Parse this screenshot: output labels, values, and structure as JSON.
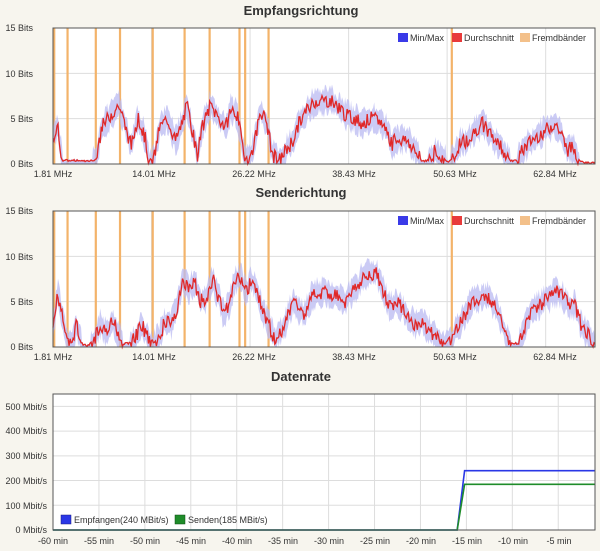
{
  "chart_data": [
    {
      "type": "bar",
      "title": "Empfangsrichtung",
      "yunit": "Bits",
      "ylim": [
        0,
        15
      ],
      "yticks": [
        "0 Bits",
        "5 Bits",
        "10 Bits",
        "15 Bits"
      ],
      "xlim": [
        1.81,
        68.95
      ],
      "xticks": [
        "1.81 MHz",
        "14.01 MHz",
        "26.22 MHz",
        "38.43 MHz",
        "50.63 MHz",
        "62.84 MHz"
      ],
      "legend_position": "top-right",
      "legend": [
        {
          "label": "Min/Max",
          "color": "#3a3ae8"
        },
        {
          "label": "Durchschnitt",
          "color": "#e83a3a"
        },
        {
          "label": "Fremdbänder",
          "color": "#f3c08a"
        }
      ],
      "grid": true,
      "foreign_bands_mhz": [
        1.95,
        3.6,
        7.1,
        10.1,
        14.15,
        18.1,
        21.2,
        24.9,
        25.6,
        28.5,
        51.2
      ],
      "avg_profile": [
        [
          1.81,
          3
        ],
        [
          2.4,
          4
        ],
        [
          3.0,
          0.3
        ],
        [
          6.5,
          0.2
        ],
        [
          7.3,
          0.5
        ],
        [
          7.8,
          4
        ],
        [
          9,
          5.5
        ],
        [
          10,
          6.5
        ],
        [
          10.8,
          4
        ],
        [
          11.5,
          2
        ],
        [
          12.3,
          5
        ],
        [
          13.2,
          3
        ],
        [
          13.7,
          0.3
        ],
        [
          14.3,
          0.5
        ],
        [
          15.0,
          4
        ],
        [
          16,
          5
        ],
        [
          17,
          2.5
        ],
        [
          17.8,
          4.5
        ],
        [
          18.4,
          6.5
        ],
        [
          19.1,
          3.5
        ],
        [
          19.7,
          0.8
        ],
        [
          20.3,
          4
        ],
        [
          21.3,
          6.5
        ],
        [
          22.4,
          5
        ],
        [
          23.2,
          4
        ],
        [
          23.8,
          6
        ],
        [
          24.6,
          5.5
        ],
        [
          25.5,
          1
        ],
        [
          26.2,
          0.5
        ],
        [
          26.9,
          3
        ],
        [
          27.5,
          6
        ],
        [
          28.3,
          4.5
        ],
        [
          29.0,
          1
        ],
        [
          29.8,
          0.3
        ],
        [
          30.6,
          1.5
        ],
        [
          31.5,
          2.5
        ],
        [
          32.3,
          4.5
        ],
        [
          33.3,
          6
        ],
        [
          34.3,
          7
        ],
        [
          36.2,
          7
        ],
        [
          37.2,
          6.3
        ],
        [
          38.2,
          5.3
        ],
        [
          39.2,
          5
        ],
        [
          40.2,
          4.5
        ],
        [
          41.2,
          5
        ],
        [
          42.2,
          4.8
        ],
        [
          43.0,
          4
        ],
        [
          43.8,
          2.2
        ],
        [
          44.5,
          2.8
        ],
        [
          45.8,
          2.5
        ],
        [
          46.8,
          1.2
        ],
        [
          47.5,
          0.2
        ],
        [
          48.3,
          0.3
        ],
        [
          49.2,
          1.5
        ],
        [
          50.0,
          0.5
        ],
        [
          50.8,
          0.2
        ],
        [
          51.5,
          0.5
        ],
        [
          52.3,
          2.5
        ],
        [
          53.0,
          2.5
        ],
        [
          54.0,
          3.5
        ],
        [
          55.0,
          4.5
        ],
        [
          56.0,
          3.2
        ],
        [
          56.8,
          2.5
        ],
        [
          57.8,
          1.2
        ],
        [
          58.5,
          0.2
        ],
        [
          59.3,
          0.3
        ],
        [
          60.0,
          1.5
        ],
        [
          61.0,
          2.5
        ],
        [
          62.0,
          3.2
        ],
        [
          63.0,
          3.8
        ],
        [
          64.0,
          4.5
        ],
        [
          64.8,
          3.2
        ],
        [
          65.5,
          1.5
        ],
        [
          66.3,
          1.8
        ],
        [
          67.0,
          0.3
        ],
        [
          67.6,
          0
        ]
      ]
    },
    {
      "type": "bar",
      "title": "Senderichtung",
      "yunit": "Bits",
      "ylim": [
        0,
        15
      ],
      "yticks": [
        "0 Bits",
        "5 Bits",
        "10 Bits",
        "15 Bits"
      ],
      "xlim": [
        1.81,
        68.95
      ],
      "xticks": [
        "1.81 MHz",
        "14.01 MHz",
        "26.22 MHz",
        "38.43 MHz",
        "50.63 MHz",
        "62.84 MHz"
      ],
      "legend_position": "top-right",
      "legend": [
        {
          "label": "Min/Max",
          "color": "#3a3ae8"
        },
        {
          "label": "Durchschnitt",
          "color": "#e83a3a"
        },
        {
          "label": "Fremdbänder",
          "color": "#f3c08a"
        }
      ],
      "grid": true,
      "foreign_bands_mhz": [
        1.95,
        3.6,
        7.1,
        10.1,
        14.15,
        18.1,
        21.2,
        24.9,
        25.6,
        28.5,
        51.2
      ],
      "avg_profile": [
        [
          1.81,
          2
        ],
        [
          2.4,
          6
        ],
        [
          3.0,
          3
        ],
        [
          3.5,
          1
        ],
        [
          4.1,
          0.3
        ],
        [
          4.7,
          2.5
        ],
        [
          5.3,
          0.3
        ],
        [
          6.0,
          0
        ],
        [
          6.8,
          0.5
        ],
        [
          7.6,
          2.5
        ],
        [
          8.4,
          1.5
        ],
        [
          9.2,
          3
        ],
        [
          9.9,
          1.5
        ],
        [
          10.5,
          0.2
        ],
        [
          11.3,
          0.3
        ],
        [
          12.0,
          1
        ],
        [
          12.8,
          2.5
        ],
        [
          13.6,
          0.8
        ],
        [
          14.3,
          0.3
        ],
        [
          15.0,
          1.2
        ],
        [
          15.8,
          3
        ],
        [
          16.5,
          2.5
        ],
        [
          17.2,
          4.5
        ],
        [
          17.9,
          7.5
        ],
        [
          18.6,
          6.5
        ],
        [
          19.4,
          7
        ],
        [
          20.1,
          5
        ],
        [
          20.8,
          5.5
        ],
        [
          21.6,
          7.5
        ],
        [
          22.3,
          5.5
        ],
        [
          23.0,
          3.5
        ],
        [
          23.7,
          5
        ],
        [
          24.4,
          7.5
        ],
        [
          25.1,
          7.5
        ],
        [
          25.8,
          6
        ],
        [
          26.4,
          7.5
        ],
        [
          27.1,
          6
        ],
        [
          27.8,
          4
        ],
        [
          28.5,
          2.5
        ],
        [
          29.2,
          1
        ],
        [
          30.0,
          1.5
        ],
        [
          30.8,
          3
        ],
        [
          31.5,
          5
        ],
        [
          32.3,
          4
        ],
        [
          33.0,
          3.5
        ],
        [
          33.8,
          5.5
        ],
        [
          34.5,
          6
        ],
        [
          36.0,
          6
        ],
        [
          37.0,
          5.5
        ],
        [
          38.0,
          5
        ],
        [
          38.7,
          5.8
        ],
        [
          39.5,
          6.5
        ],
        [
          40.3,
          8
        ],
        [
          42.0,
          8
        ],
        [
          42.8,
          6
        ],
        [
          43.5,
          4.5
        ],
        [
          44.3,
          5
        ],
        [
          45.2,
          4.2
        ],
        [
          46.0,
          3
        ],
        [
          46.8,
          2.5
        ],
        [
          47.5,
          3
        ],
        [
          48.2,
          2
        ],
        [
          48.9,
          1.5
        ],
        [
          49.6,
          0.7
        ],
        [
          50.3,
          0.3
        ],
        [
          51.0,
          0.5
        ],
        [
          51.8,
          2
        ],
        [
          52.5,
          2.8
        ],
        [
          53.3,
          4.5
        ],
        [
          54.1,
          5.3
        ],
        [
          55.0,
          5.5
        ],
        [
          55.8,
          5.5
        ],
        [
          56.6,
          4.5
        ],
        [
          57.3,
          3
        ],
        [
          58.0,
          1
        ],
        [
          58.7,
          0.2
        ],
        [
          59.5,
          0.3
        ],
        [
          60.2,
          2
        ],
        [
          61.0,
          4
        ],
        [
          61.8,
          4.5
        ],
        [
          62.6,
          5
        ],
        [
          63.4,
          5.5
        ],
        [
          64.2,
          6
        ],
        [
          65.0,
          5.5
        ],
        [
          65.8,
          4.5
        ],
        [
          66.5,
          4.5
        ],
        [
          67.2,
          2.5
        ],
        [
          68.0,
          1.5
        ],
        [
          68.95,
          0.2
        ]
      ]
    },
    {
      "type": "line",
      "title": "Datenrate",
      "yunit": "Mbit/s",
      "ylim": [
        0,
        550
      ],
      "yticks": [
        "0 Mbit/s",
        "100 Mbit/s",
        "200 Mbit/s",
        "300 Mbit/s",
        "400 Mbit/s",
        "500 Mbit/s"
      ],
      "xlim": [
        -60,
        -1
      ],
      "xticks": [
        "-60 min",
        "-55 min",
        "-50 min",
        "-45 min",
        "-40 min",
        "-35 min",
        "-30 min",
        "-25 min",
        "-20 min",
        "-15 min",
        "-10 min",
        "-5 min"
      ],
      "grid": true,
      "legend_position": "bottom-left",
      "series": [
        {
          "name": "Empfangen(240 MBit/s)",
          "color": "#2a37e6",
          "values": [
            [
              -60,
              0
            ],
            [
              -16,
              0
            ],
            [
              -15.2,
              240
            ],
            [
              -1,
              240
            ]
          ]
        },
        {
          "name": "Senden(185 MBit/s)",
          "color": "#1f8c2a",
          "values": [
            [
              -60,
              0
            ],
            [
              -16,
              0
            ],
            [
              -15.2,
              185
            ],
            [
              -1,
              185
            ]
          ]
        }
      ]
    }
  ]
}
